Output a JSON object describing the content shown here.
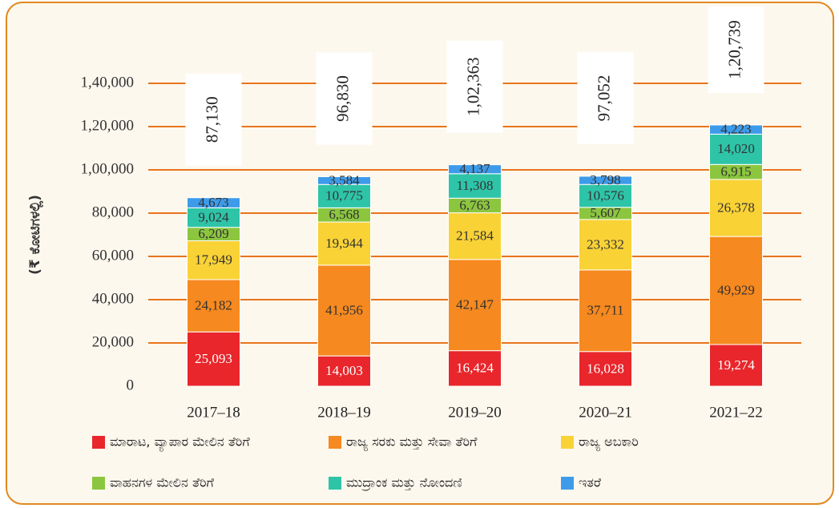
{
  "chart_data": {
    "type": "stacked_bar",
    "y_axis_label": "(₹ ಕೋಟಿಗಳಲ್ಲಿ)",
    "categories": [
      "2017–18",
      "2018–19",
      "2019–20",
      "2020–21",
      "2021–22"
    ],
    "ylim": [
      0,
      140000
    ],
    "yticks": [
      0,
      {
        "value": 20000,
        "label": "20,000"
      },
      {
        "value": 40000,
        "label": "40,000"
      },
      {
        "value": 60000,
        "label": "60,000"
      },
      {
        "value": 80000,
        "label": "80,000"
      },
      {
        "value": 100000,
        "label": "1,00,000"
      },
      {
        "value": 120000,
        "label": "1,20,000"
      },
      {
        "value": 140000,
        "label": "1,40,000"
      }
    ],
    "grid": true,
    "series": [
      {
        "name": "ಮಾರಾಟ, ವ್ಯಾಪಾರ ಮೇಲಿನ ತೆರಿಗೆ",
        "color": "#e8262b",
        "values": [
          25093,
          14003,
          16424,
          16028,
          19274
        ],
        "value_labels": [
          "25,093",
          "14,003",
          "16,424",
          "16,028",
          "19,274"
        ]
      },
      {
        "name": "ರಾಜ್ಯ ಸರಕು ಮತ್ತು ಸೇವಾ ತೆರಿಗೆ",
        "color": "#f6891f",
        "values": [
          24182,
          41956,
          42147,
          37711,
          49929
        ],
        "value_labels": [
          "24,182",
          "41,956",
          "42,147",
          "37,711",
          "49,929"
        ]
      },
      {
        "name": "ರಾಜ್ಯ ಅಬಕಾರಿ",
        "color": "#f9d236",
        "values": [
          17949,
          19944,
          21584,
          23332,
          26378
        ],
        "value_labels": [
          "17,949",
          "19,944",
          "21,584",
          "23,332",
          "26,378"
        ]
      },
      {
        "name": "ವಾಹನಗಳ ಮೇಲಿನ ತೆರಿಗೆ",
        "color": "#8cc63f",
        "values": [
          6209,
          6568,
          6763,
          5607,
          6915
        ],
        "value_labels": [
          "6,209",
          "6,568",
          "6,763",
          "5,607",
          "6,915"
        ]
      },
      {
        "name": "ಮುದ್ರಾಂಕ ಮತ್ತು ನೋಂದಣಿ",
        "color": "#2ec4a8",
        "values": [
          9024,
          10775,
          11308,
          10576,
          14020
        ],
        "value_labels": [
          "9,024",
          "10,775",
          "11,308",
          "10,576",
          "14,020"
        ]
      },
      {
        "name": "ಇತರೆ",
        "color": "#3d9be9",
        "values": [
          4673,
          3584,
          4137,
          3798,
          4223
        ],
        "value_labels": [
          "4,673",
          "3,584",
          "4,137",
          "3,798",
          "4,223"
        ]
      }
    ],
    "totals": [
      87130,
      96830,
      102363,
      97052,
      120739
    ],
    "total_labels": [
      "87,130",
      "96,830",
      "1,02,363",
      "97,052",
      "1,20,739"
    ]
  }
}
